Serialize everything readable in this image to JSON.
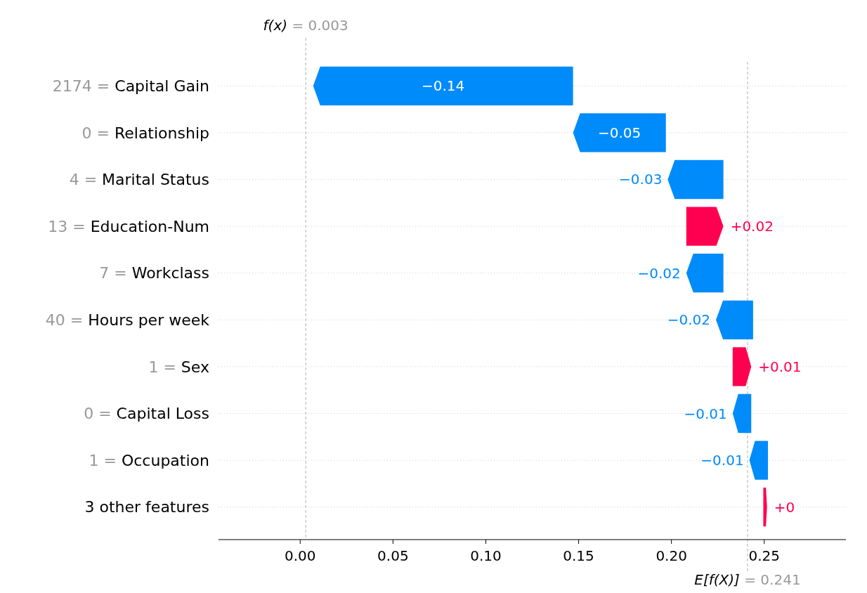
{
  "chart_data": {
    "type": "bar",
    "orientation": "horizontal",
    "categories": [
      "2174 = Capital Gain",
      "0 = Relationship",
      "4 = Marital Status",
      "13 = Education-Num",
      "7 = Workclass",
      "40 = Hours per week",
      "1 = Sex",
      "0 = Capital Loss",
      "1 = Occupation",
      "3 other features"
    ],
    "values": [
      -0.14,
      -0.05,
      -0.03,
      0.02,
      -0.02,
      -0.02,
      0.01,
      -0.01,
      -0.01,
      0.002
    ],
    "base": [
      0.147,
      0.197,
      0.228,
      0.208,
      0.228,
      0.244,
      0.233,
      0.243,
      0.252,
      0.2495
    ],
    "colors": [
      "#008bfb",
      "#008bfb",
      "#008bfb",
      "#ff0051",
      "#008bfb",
      "#008bfb",
      "#ff0051",
      "#008bfb",
      "#008bfb",
      "#ff0051"
    ],
    "value_labels": [
      "−0.14",
      "−0.05",
      "−0.03",
      "+0.02",
      "−0.02",
      "−0.02",
      "+0.01",
      "−0.01",
      "−0.01",
      "+0"
    ],
    "xlim": [
      -0.044,
      0.294
    ],
    "xticks": [
      {
        "value": 0,
        "label": "0.00"
      },
      {
        "value": 0.05,
        "label": "0.05"
      },
      {
        "value": 0.1,
        "label": "0.10"
      },
      {
        "value": 0.15,
        "label": "0.15"
      },
      {
        "value": 0.2,
        "label": "0.20"
      },
      {
        "value": 0.25,
        "label": "0.25"
      }
    ],
    "grid": "y",
    "ref_lines": [
      {
        "axis": "x",
        "value": 0.003,
        "label": "f(x) = 0.003",
        "color": "#999999",
        "line_style": "dashed"
      },
      {
        "axis": "x",
        "value": 0.241,
        "label": "E[f(X)] = 0.241",
        "color": "#999999",
        "line_style": "dashed"
      }
    ]
  }
}
